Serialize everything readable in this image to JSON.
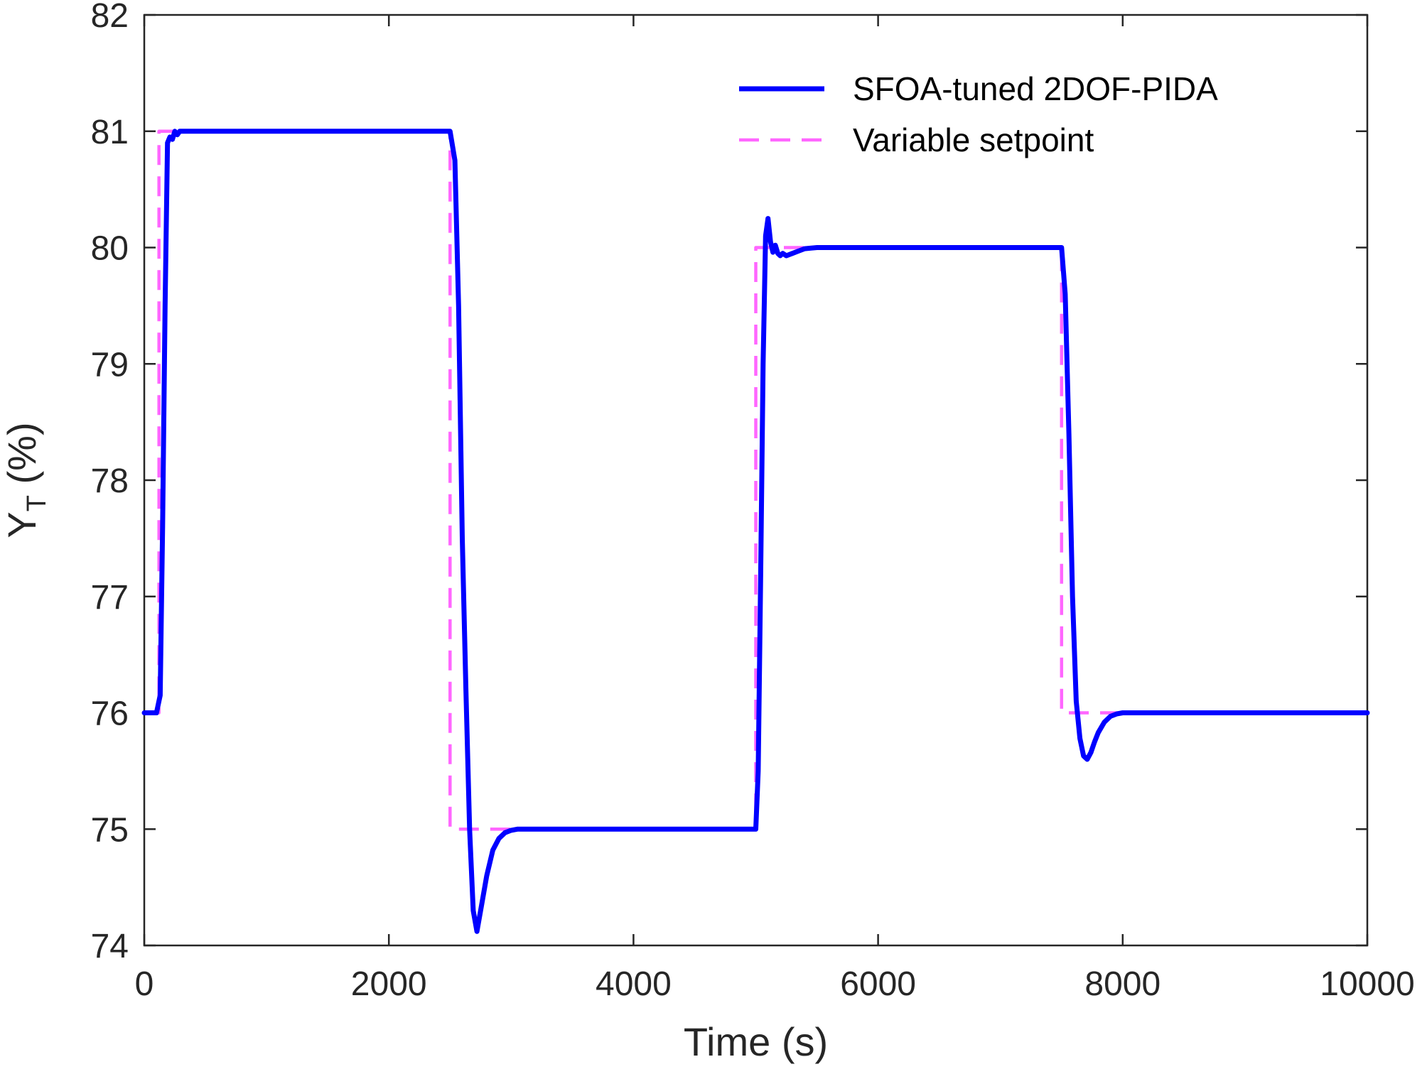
{
  "chart_data": {
    "type": "line",
    "xlabel": "Time (s)",
    "ylabel": {
      "main": "Y",
      "subscript": "T",
      "suffix": " (%)"
    },
    "xlim": [
      0,
      10000
    ],
    "ylim": [
      74,
      82
    ],
    "xticks": [
      0,
      2000,
      4000,
      6000,
      8000,
      10000
    ],
    "yticks": [
      74,
      75,
      76,
      77,
      78,
      79,
      80,
      81,
      82
    ],
    "grid": false,
    "legend_position": "top-right",
    "colors": {
      "response": "#0000FF",
      "setpoint": "#FF66FF",
      "axes": "#262626"
    },
    "series": [
      {
        "name": "SFOA-tuned 2DOF-PIDA",
        "style": "solid",
        "x": [
          0,
          100,
          130,
          150,
          170,
          190,
          210,
          230,
          250,
          270,
          290,
          320,
          360,
          500,
          2500,
          2540,
          2570,
          2600,
          2630,
          2660,
          2690,
          2720,
          2750,
          2800,
          2850,
          2900,
          2950,
          3000,
          3050,
          3100,
          3200,
          5000,
          5020,
          5040,
          5060,
          5080,
          5100,
          5120,
          5140,
          5160,
          5180,
          5200,
          5220,
          5250,
          5300,
          5350,
          5400,
          5500,
          5600,
          7500,
          7530,
          7560,
          7590,
          7620,
          7650,
          7680,
          7710,
          7740,
          7770,
          7800,
          7850,
          7900,
          7950,
          8000,
          8100,
          10000
        ],
        "y": [
          76,
          76,
          76.15,
          77.6,
          79.5,
          80.9,
          80.95,
          80.93,
          81.0,
          80.97,
          81.0,
          81.0,
          81.0,
          81.0,
          81.0,
          80.75,
          79.5,
          77.5,
          76.2,
          75.0,
          74.3,
          74.12,
          74.3,
          74.6,
          74.82,
          74.92,
          74.97,
          74.99,
          75.0,
          75.0,
          75.0,
          75.0,
          75.5,
          77.2,
          79.0,
          80.1,
          80.25,
          80.05,
          79.96,
          80.02,
          79.95,
          79.93,
          79.95,
          79.93,
          79.95,
          79.97,
          79.99,
          80.0,
          80.0,
          80.0,
          79.6,
          78.4,
          77.0,
          76.1,
          75.78,
          75.63,
          75.6,
          75.66,
          75.75,
          75.83,
          75.92,
          75.97,
          75.99,
          76.0,
          76.0,
          76.0
        ]
      },
      {
        "name": "Variable setpoint",
        "style": "dashed",
        "x": [
          0,
          120,
          120,
          2500,
          2500,
          5000,
          5000,
          7500,
          7500,
          10000
        ],
        "y": [
          76,
          76,
          81,
          81,
          75,
          75,
          80,
          80,
          76,
          76
        ]
      }
    ]
  }
}
